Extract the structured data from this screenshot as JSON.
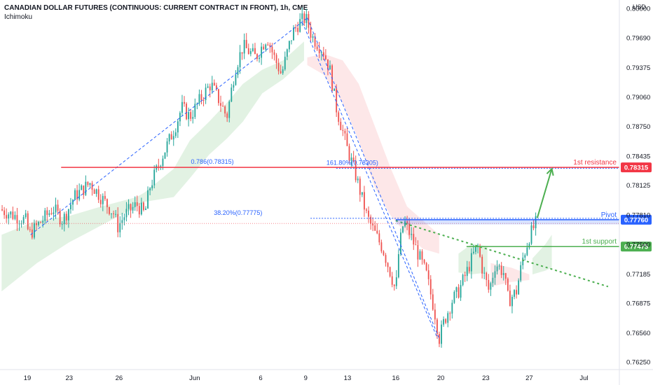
{
  "header": {
    "title": "CANADIAN DOLLAR FUTURES (CONTINUOUS: CURRENT CONTRACT IN FRONT), 1h, CME",
    "indicator": "Ichimoku",
    "currency": "USD"
  },
  "chart_data": {
    "type": "candlestick",
    "x_ticks": [
      {
        "label": "19",
        "t": 0.4
      },
      {
        "label": "23",
        "t": 3.0
      },
      {
        "label": "26",
        "t": 6.1
      },
      {
        "label": "Jun",
        "t": 10.8
      },
      {
        "label": "6",
        "t": 14.9
      },
      {
        "label": "9",
        "t": 17.7
      },
      {
        "label": "13",
        "t": 20.3
      },
      {
        "label": "16",
        "t": 23.3
      },
      {
        "label": "20",
        "t": 26.1
      },
      {
        "label": "23",
        "t": 28.9
      },
      {
        "label": "27",
        "t": 31.6
      },
      {
        "label": "Jul",
        "t": 35.0
      }
    ],
    "t_range": [
      -1.3,
      37.2
    ],
    "y_ticks": [
      0.8,
      0.7969,
      0.79375,
      0.7906,
      0.7875,
      0.78435,
      0.78125,
      0.7781,
      0.775,
      0.77185,
      0.76875,
      0.7656,
      0.7625
    ],
    "y_range": [
      0.7617,
      0.8009
    ],
    "price_path": [
      [
        -1.3,
        0.7787
      ],
      [
        0.3,
        0.7775
      ],
      [
        0.5,
        0.776
      ],
      [
        2.0,
        0.7788
      ],
      [
        2.6,
        0.7775
      ],
      [
        3.3,
        0.78
      ],
      [
        4.3,
        0.7815
      ],
      [
        5.2,
        0.7795
      ],
      [
        5.8,
        0.7782
      ],
      [
        6.0,
        0.7768
      ],
      [
        6.5,
        0.7782
      ],
      [
        7.2,
        0.7792
      ],
      [
        7.7,
        0.7782
      ],
      [
        8.0,
        0.781
      ],
      [
        8.7,
        0.784
      ],
      [
        9.6,
        0.7875
      ],
      [
        10.0,
        0.7895
      ],
      [
        10.5,
        0.7885
      ],
      [
        11.2,
        0.7905
      ],
      [
        11.8,
        0.792
      ],
      [
        12.4,
        0.79
      ],
      [
        12.8,
        0.7885
      ],
      [
        13.3,
        0.7935
      ],
      [
        13.8,
        0.796
      ],
      [
        14.6,
        0.7948
      ],
      [
        15.3,
        0.797
      ],
      [
        15.7,
        0.795
      ],
      [
        16.2,
        0.793
      ],
      [
        16.5,
        0.795
      ],
      [
        16.9,
        0.7975
      ],
      [
        17.3,
        0.7985
      ],
      [
        17.7,
        0.799
      ],
      [
        18.1,
        0.797
      ],
      [
        18.8,
        0.7955
      ],
      [
        19.2,
        0.7935
      ],
      [
        19.6,
        0.7895
      ],
      [
        20.0,
        0.787
      ],
      [
        20.3,
        0.785
      ],
      [
        20.7,
        0.783
      ],
      [
        21.1,
        0.7805
      ],
      [
        21.5,
        0.778
      ],
      [
        21.9,
        0.7765
      ],
      [
        22.5,
        0.7745
      ],
      [
        23.0,
        0.7718
      ],
      [
        23.3,
        0.77
      ],
      [
        23.5,
        0.7745
      ],
      [
        23.8,
        0.7775
      ],
      [
        24.2,
        0.776
      ],
      [
        24.8,
        0.7735
      ],
      [
        25.2,
        0.7718
      ],
      [
        25.7,
        0.768
      ],
      [
        26.0,
        0.765
      ],
      [
        26.3,
        0.7668
      ],
      [
        26.8,
        0.769
      ],
      [
        27.2,
        0.77
      ],
      [
        27.7,
        0.772
      ],
      [
        28.1,
        0.7738
      ],
      [
        28.4,
        0.7747
      ],
      [
        28.7,
        0.7722
      ],
      [
        29.1,
        0.77
      ],
      [
        29.5,
        0.773
      ],
      [
        30.0,
        0.772
      ],
      [
        30.3,
        0.769
      ],
      [
        30.8,
        0.77
      ],
      [
        31.2,
        0.7735
      ],
      [
        31.6,
        0.7758
      ],
      [
        32.0,
        0.7772
      ]
    ],
    "ichimoku_cloud": [
      {
        "color": "green",
        "from": [
          [
            -1.2,
            0.776
          ],
          [
            1.0,
            0.7775
          ],
          [
            3.0,
            0.778
          ],
          [
            5.0,
            0.779
          ],
          [
            7.2,
            0.78
          ],
          [
            7.7,
            0.7805
          ],
          [
            9.5,
            0.783
          ],
          [
            10.5,
            0.786
          ],
          [
            11.7,
            0.788
          ],
          [
            12.8,
            0.79
          ],
          [
            13.8,
            0.792
          ],
          [
            15.0,
            0.7935
          ],
          [
            16.3,
            0.7945
          ],
          [
            17.6,
            0.7965
          ]
        ],
        "to": [
          [
            -1.2,
            0.77
          ],
          [
            1.0,
            0.773
          ],
          [
            3.0,
            0.7752
          ],
          [
            5.0,
            0.777
          ],
          [
            7.2,
            0.779
          ],
          [
            7.7,
            0.7795
          ],
          [
            9.5,
            0.78
          ],
          [
            10.5,
            0.782
          ],
          [
            11.7,
            0.7845
          ],
          [
            12.8,
            0.7862
          ],
          [
            13.8,
            0.788
          ],
          [
            15.0,
            0.791
          ],
          [
            16.3,
            0.7925
          ],
          [
            17.6,
            0.7945
          ]
        ]
      },
      {
        "color": "red",
        "from": [
          [
            17.8,
            0.7948
          ],
          [
            18.8,
            0.7952
          ],
          [
            20.0,
            0.7945
          ],
          [
            21.0,
            0.792
          ],
          [
            22.0,
            0.7875
          ],
          [
            23.0,
            0.783
          ],
          [
            24.0,
            0.779
          ],
          [
            25.0,
            0.7775
          ],
          [
            26.0,
            0.776
          ]
        ],
        "to": [
          [
            17.8,
            0.794
          ],
          [
            18.8,
            0.793
          ],
          [
            20.0,
            0.79
          ],
          [
            21.0,
            0.786
          ],
          [
            22.0,
            0.781
          ],
          [
            23.0,
            0.778
          ],
          [
            24.0,
            0.776
          ],
          [
            25.0,
            0.7745
          ],
          [
            26.0,
            0.774
          ]
        ]
      },
      {
        "color": "green",
        "from": [
          [
            27.2,
            0.774
          ],
          [
            28.0,
            0.775
          ],
          [
            29.0,
            0.7748
          ]
        ],
        "to": [
          [
            27.2,
            0.772
          ],
          [
            28.0,
            0.7718
          ],
          [
            29.0,
            0.772
          ]
        ]
      },
      {
        "color": "red",
        "from": [
          [
            29.2,
            0.773
          ],
          [
            30.5,
            0.7725
          ],
          [
            31.6,
            0.7718
          ]
        ],
        "to": [
          [
            29.2,
            0.7705
          ],
          [
            30.5,
            0.771
          ],
          [
            31.6,
            0.7712
          ]
        ]
      },
      {
        "color": "green",
        "from": [
          [
            31.8,
            0.7735
          ],
          [
            32.6,
            0.775
          ],
          [
            33.0,
            0.776
          ]
        ],
        "to": [
          [
            31.8,
            0.7718
          ],
          [
            32.6,
            0.7722
          ],
          [
            33.0,
            0.7725
          ]
        ]
      }
    ],
    "levels": [
      {
        "name": "1st resistance",
        "price": 0.78315,
        "label": "0.78315",
        "color": "#f23645",
        "t_start": 2.5
      },
      {
        "name": "Pivot",
        "price": 0.7776,
        "label": "0.77760",
        "color": "#2962ff",
        "t_start": 23.3,
        "band_to": 0.7771
      },
      {
        "name": "1st support",
        "price": 0.77475,
        "label": "0.77475",
        "color": "#4caf50",
        "t_start": 27.7
      }
    ],
    "fib_labels": [
      {
        "text": "0.786(0.78315)",
        "t": 11.9,
        "price": 0.78345,
        "color": "#2962ff"
      },
      {
        "text": "161.80%(0.78305)",
        "t": 20.6,
        "price": 0.78335,
        "color": "#2962ff"
      },
      {
        "text": "38.20%(0.77775)",
        "t": 13.5,
        "price": 0.77805,
        "color": "#2962ff"
      }
    ],
    "fib_lines": [
      {
        "t1": 19.6,
        "t2": 37.2,
        "price": 0.78305,
        "color": "#2962ff",
        "style": "dotted"
      },
      {
        "t1": 18.0,
        "t2": 37.2,
        "price": 0.77775,
        "color": "#2962ff",
        "style": "dotted"
      }
    ],
    "trendlines": [
      {
        "from": [
          0.6,
          0.776
        ],
        "to": [
          17.8,
          0.799
        ],
        "color": "#2962ff",
        "style": "dashed"
      },
      {
        "from": [
          17.8,
          0.799
        ],
        "to": [
          26.0,
          0.765
        ],
        "color": "#2962ff",
        "style": "dashed"
      },
      {
        "from": [
          17.5,
          0.7985
        ],
        "to": [
          25.9,
          0.765
        ],
        "color": "#2962ff",
        "style": "dashed"
      },
      {
        "from": [
          23.3,
          0.7775
        ],
        "to": [
          36.5,
          0.7705
        ],
        "color": "#4caf50",
        "style": "dotted"
      }
    ],
    "arrow": {
      "from": [
        32.1,
        0.7778
      ],
      "to": [
        33.0,
        0.783
      ],
      "color": "#4caf50"
    },
    "last_price_line": {
      "price": 0.7772,
      "color": "#f23645"
    }
  }
}
